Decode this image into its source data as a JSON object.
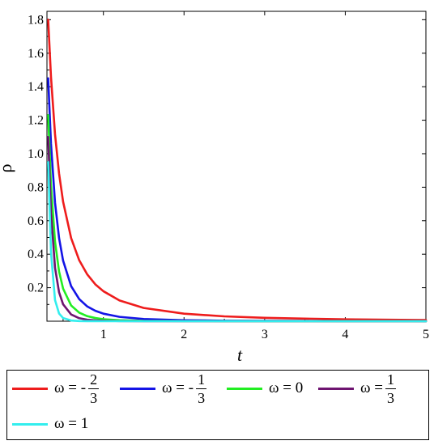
{
  "chart_data": {
    "type": "line",
    "title": "",
    "xlabel": "t",
    "ylabel": "ρ",
    "xlim": [
      0.3,
      5
    ],
    "ylim": [
      0,
      1.85
    ],
    "xticks": [
      1,
      2,
      3,
      4,
      5
    ],
    "yticks": [
      0.2,
      0.4,
      0.6,
      0.8,
      1.0,
      1.2,
      1.4,
      1.6,
      1.8
    ],
    "ytick_labels": [
      "0.2",
      "0.4",
      "0.6",
      "0.8",
      "1.0",
      "1.2",
      "1.4",
      "1.6",
      "1.8"
    ],
    "legend_position": "bottom",
    "grid": false,
    "series": [
      {
        "name": "ω = - 2/3",
        "color": "#ee1c1c",
        "x": [
          0.315,
          0.35,
          0.4,
          0.45,
          0.5,
          0.6,
          0.7,
          0.8,
          0.9,
          1.0,
          1.2,
          1.5,
          2.0,
          2.5,
          3.0,
          4.0,
          5.0
        ],
        "y": [
          1.8,
          1.458,
          1.116,
          0.882,
          0.714,
          0.496,
          0.364,
          0.279,
          0.22,
          0.179,
          0.124,
          0.079,
          0.045,
          0.029,
          0.02,
          0.011,
          0.007
        ]
      },
      {
        "name": "ω = - 1/3",
        "color": "#1414e6",
        "x": [
          0.315,
          0.35,
          0.4,
          0.45,
          0.5,
          0.6,
          0.7,
          0.8,
          0.9,
          1.0,
          1.2,
          1.5,
          2.0,
          2.5,
          3.0,
          4.0,
          5.0
        ],
        "y": [
          1.45,
          1.058,
          0.707,
          0.497,
          0.362,
          0.209,
          0.132,
          0.088,
          0.062,
          0.045,
          0.026,
          0.013,
          0.006,
          0.003,
          0.002,
          0.001,
          0.0005
        ]
      },
      {
        "name": "ω = 0",
        "color": "#22ee22",
        "x": [
          0.315,
          0.35,
          0.4,
          0.45,
          0.5,
          0.6,
          0.7,
          0.8,
          0.9,
          1.0,
          1.2,
          1.5,
          2.0,
          2.5,
          3.0,
          4.0,
          5.0
        ],
        "y": [
          1.23,
          0.81,
          0.475,
          0.297,
          0.195,
          0.094,
          0.051,
          0.03,
          0.019,
          0.012,
          0.006,
          0.002,
          0.001,
          0.0004,
          0.0002,
          0.0001,
          0.0
        ]
      },
      {
        "name": "ω = 1/3",
        "color": "#6e1470",
        "x": [
          0.315,
          0.35,
          0.4,
          0.45,
          0.5,
          0.6,
          0.7,
          0.8,
          0.9,
          1.0,
          1.2,
          1.5,
          2.0,
          2.5,
          3.0,
          4.0,
          5.0
        ],
        "y": [
          1.1,
          0.646,
          0.319,
          0.173,
          0.101,
          0.04,
          0.018,
          0.009,
          0.005,
          0.003,
          0.001,
          0.0004,
          0.0001,
          0.0,
          0.0,
          0.0,
          0.0
        ]
      },
      {
        "name": "ω = 1",
        "color": "#33eeee",
        "x": [
          0.315,
          0.35,
          0.4,
          0.45,
          0.5,
          0.6,
          0.7,
          0.8,
          0.9,
          1.0,
          1.2,
          1.5,
          2.0,
          2.5,
          3.0,
          4.0,
          5.0
        ],
        "y": [
          0.95,
          0.41,
          0.126,
          0.046,
          0.019,
          0.004,
          0.001,
          0.0003,
          0.0001,
          0.0,
          0.0,
          0.0,
          0.0,
          0.0,
          0.0,
          0.0,
          0.0
        ]
      }
    ]
  },
  "legend": {
    "items": [
      {
        "symbol": "ω",
        "eq": "=",
        "sign": "-",
        "num": "2",
        "den": "3",
        "color": "#ee1c1c"
      },
      {
        "symbol": "ω",
        "eq": "=",
        "sign": "-",
        "num": "1",
        "den": "3",
        "color": "#1414e6"
      },
      {
        "symbol": "ω",
        "eq": "=",
        "value": "0",
        "color": "#22ee22"
      },
      {
        "symbol": "ω",
        "eq": "=",
        "num": "1",
        "den": "3",
        "color": "#6e1470"
      },
      {
        "symbol": "ω",
        "eq": "=",
        "value": "1",
        "color": "#33eeee"
      }
    ]
  }
}
